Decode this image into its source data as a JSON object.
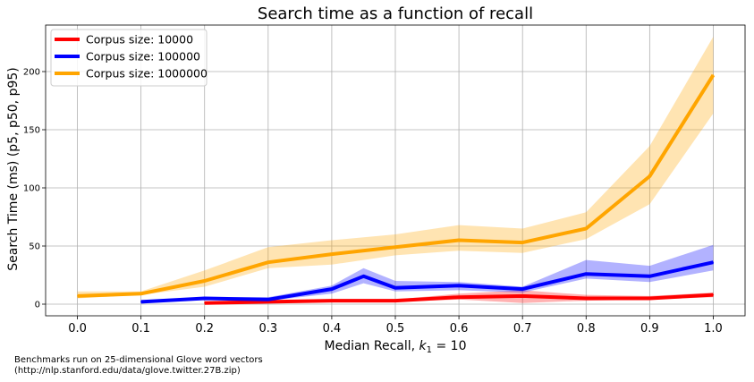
{
  "chart_data": {
    "type": "line",
    "title": "Search time as a function of recall",
    "xlabel": "Median Recall, ",
    "xlabel_math": "k",
    "xlabel_sub": "1",
    "xlabel_tail": " = 10",
    "ylabel": "Search Time (ms) (p5, p50, p95)",
    "xlim": [
      -0.05,
      1.05
    ],
    "ylim": [
      -10,
      240
    ],
    "xticks": [
      "0.0",
      "0.1",
      "0.2",
      "0.3",
      "0.4",
      "0.5",
      "0.6",
      "0.7",
      "0.8",
      "0.9",
      "1.0"
    ],
    "yticks": [
      "0",
      "50",
      "100",
      "150",
      "200"
    ],
    "grid": true,
    "legend_position": "top-left",
    "series": [
      {
        "name": "Corpus size: 10000",
        "color": "#ff0000",
        "x": [
          0.2,
          0.3,
          0.4,
          0.5,
          0.6,
          0.7,
          0.8,
          0.9,
          1.0
        ],
        "p50": [
          1,
          2,
          3,
          3,
          6,
          7,
          5,
          5,
          8
        ],
        "p5": [
          0,
          1,
          2,
          2,
          4,
          1,
          3,
          4,
          6
        ],
        "p95": [
          2,
          3,
          4,
          4,
          9,
          12,
          8,
          7,
          10
        ]
      },
      {
        "name": "Corpus size: 100000",
        "color": "#0000ff",
        "x": [
          0.1,
          0.2,
          0.3,
          0.4,
          0.45,
          0.5,
          0.6,
          0.7,
          0.8,
          0.9,
          1.0
        ],
        "p50": [
          2,
          5,
          4,
          13,
          24,
          14,
          16,
          13,
          26,
          24,
          36
        ],
        "p5": [
          1,
          4,
          3,
          9,
          18,
          11,
          12,
          10,
          22,
          19,
          29
        ],
        "p95": [
          3,
          6,
          6,
          16,
          31,
          20,
          19,
          15,
          38,
          33,
          51
        ]
      },
      {
        "name": "Corpus size: 1000000",
        "color": "#ffa500",
        "x": [
          0.0,
          0.1,
          0.2,
          0.3,
          0.4,
          0.5,
          0.6,
          0.7,
          0.8,
          0.9,
          1.0
        ],
        "p50": [
          7,
          9,
          20,
          36,
          43,
          49,
          55,
          53,
          65,
          110,
          197
        ],
        "p5": [
          5,
          8,
          15,
          31,
          34,
          42,
          46,
          44,
          56,
          86,
          164
        ],
        "p95": [
          11,
          11,
          29,
          49,
          55,
          60,
          68,
          65,
          79,
          136,
          230
        ]
      }
    ]
  },
  "footnote": {
    "line1": "Benchmarks run on 25-dimensional Glove word vectors",
    "line2": "(http://nlp.stanford.edu/data/glove.twitter.27B.zip)"
  }
}
